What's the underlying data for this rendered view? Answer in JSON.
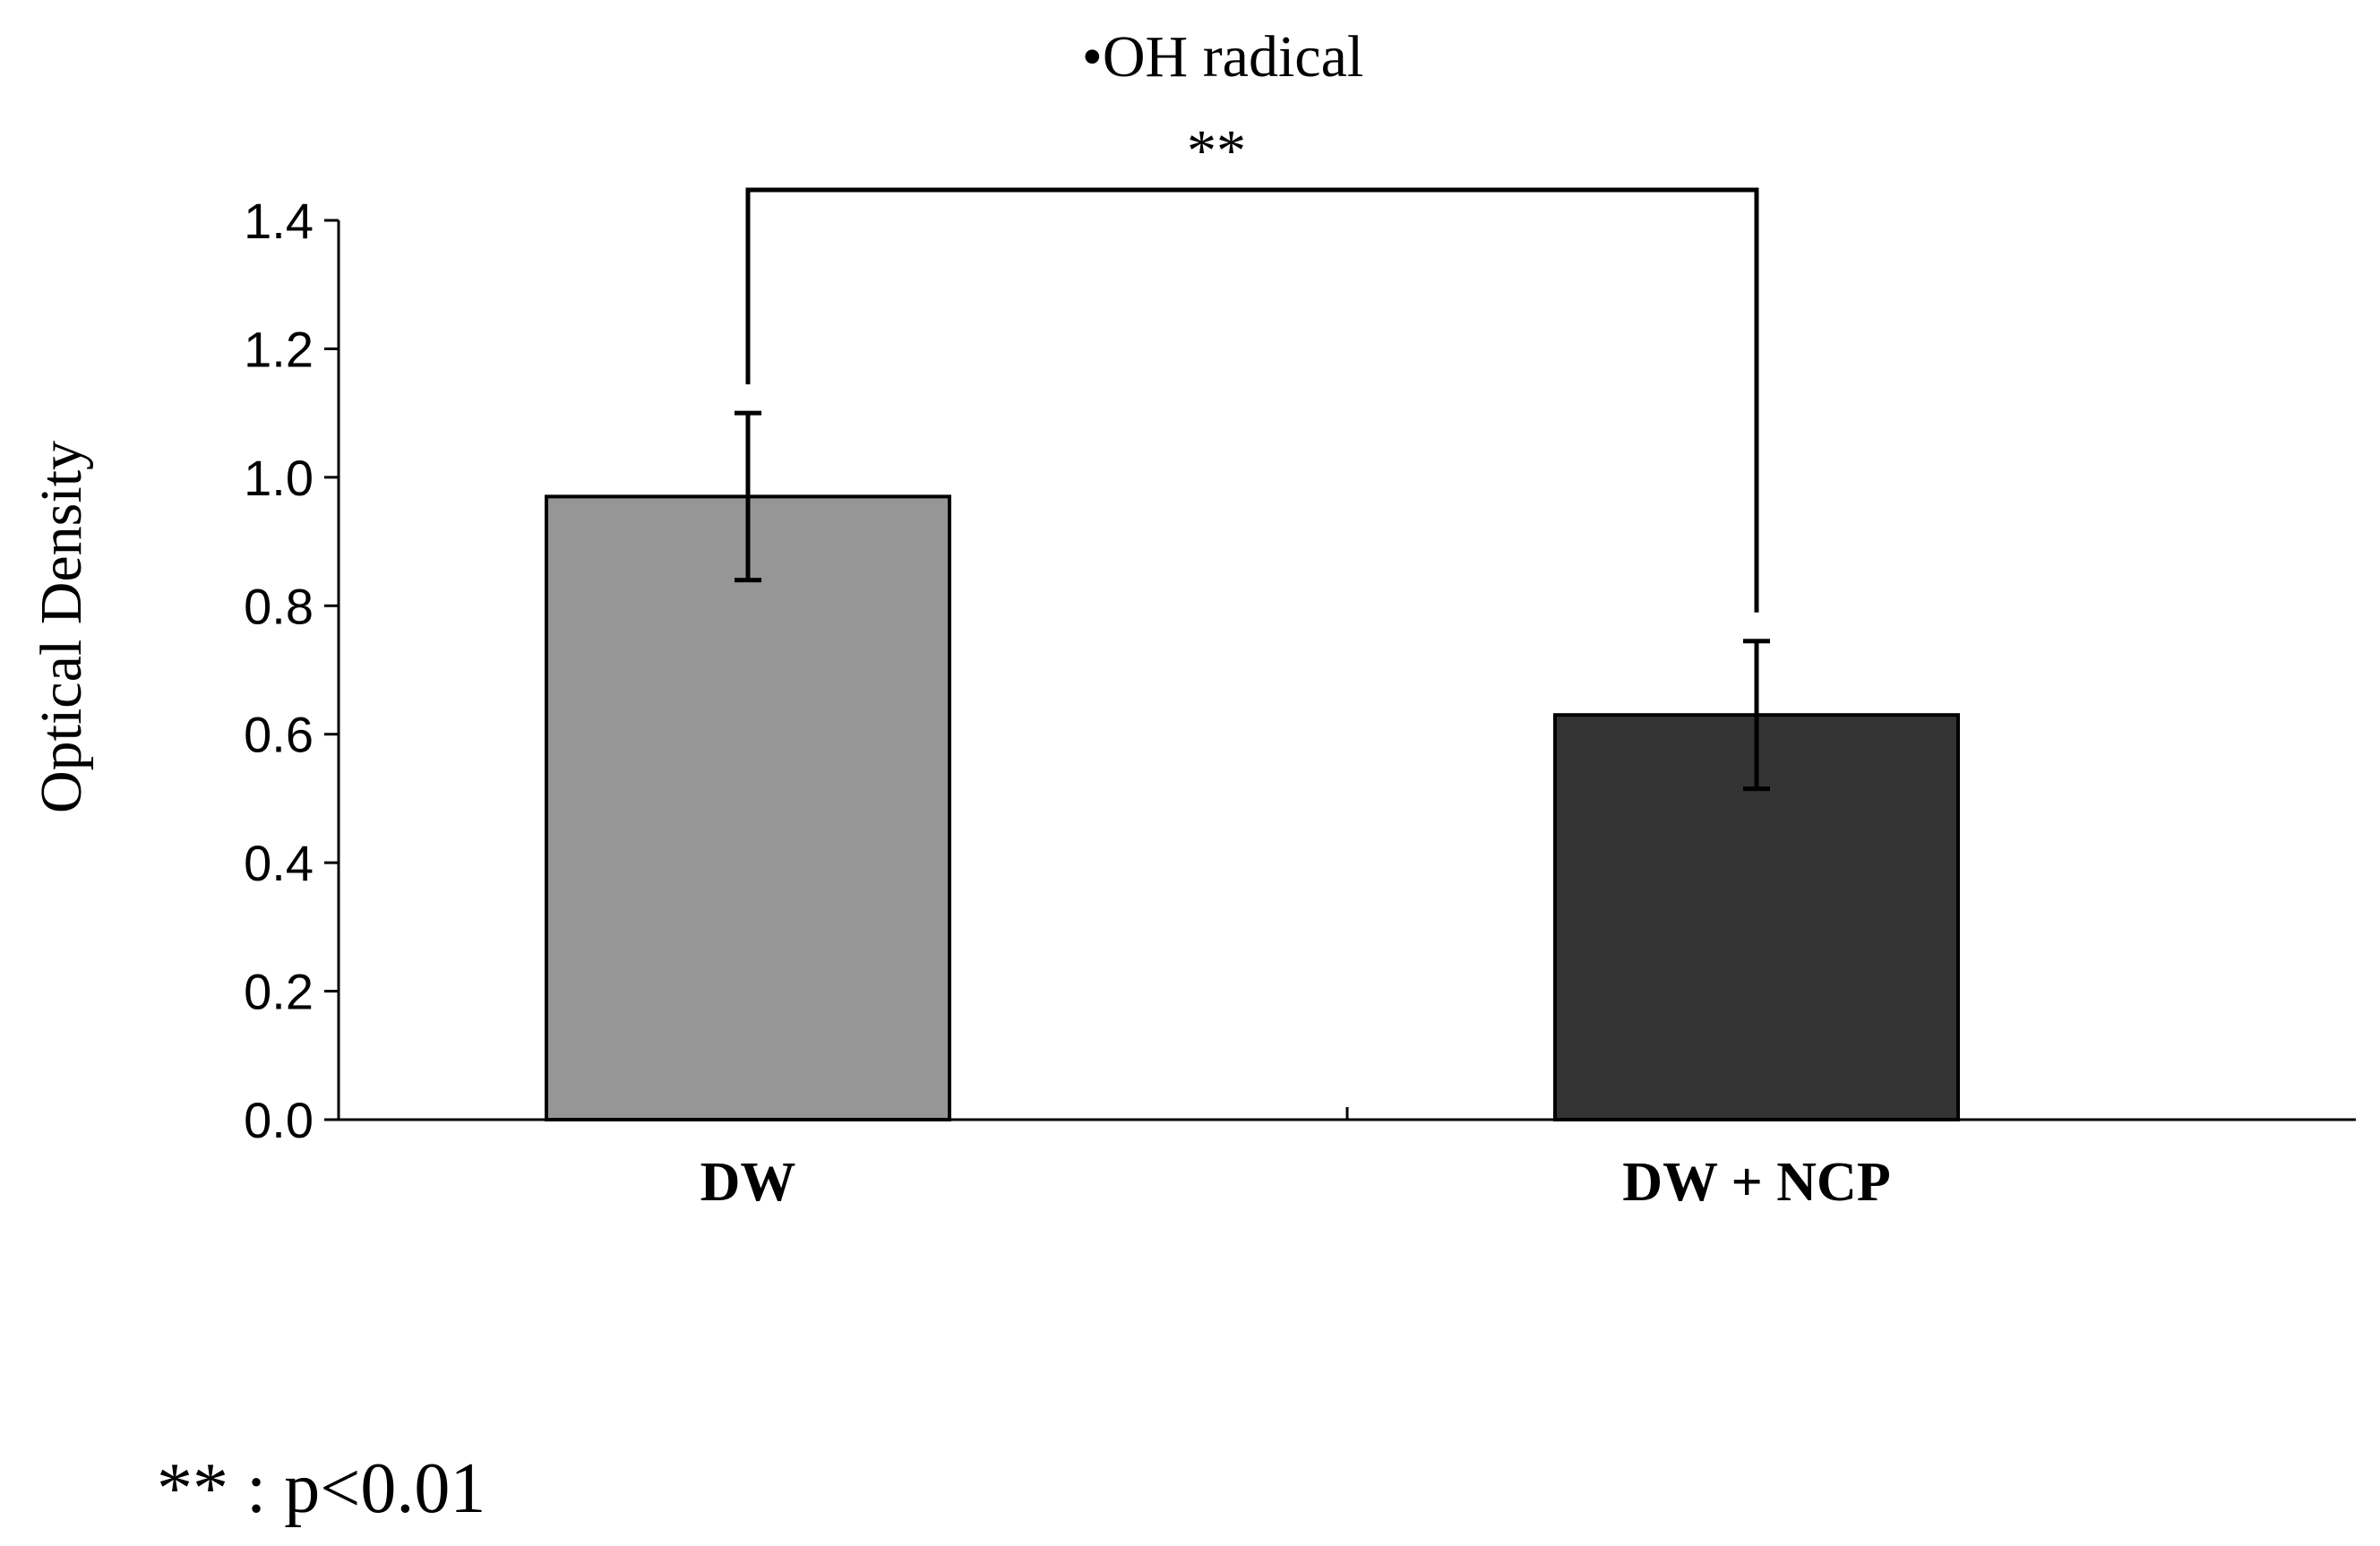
{
  "chart_data": {
    "type": "bar",
    "title": "•OH radical",
    "xlabel": "",
    "ylabel": "Optical Density",
    "ylim": [
      0,
      1.4
    ],
    "ytick_step": 0.2,
    "yticks": [
      "0.0",
      "0.2",
      "0.4",
      "0.6",
      "0.8",
      "1.0",
      "1.2",
      "1.4"
    ],
    "grid": false,
    "categories": [
      "DW",
      "DW + NCP"
    ],
    "values": [
      0.97,
      0.63
    ],
    "errors": [
      0.13,
      0.115
    ],
    "bar_colors": [
      "#969696",
      "#333333"
    ],
    "significance": {
      "label": "**",
      "between": [
        "DW",
        "DW + NCP"
      ]
    },
    "footnote": "** : p<0.01"
  }
}
